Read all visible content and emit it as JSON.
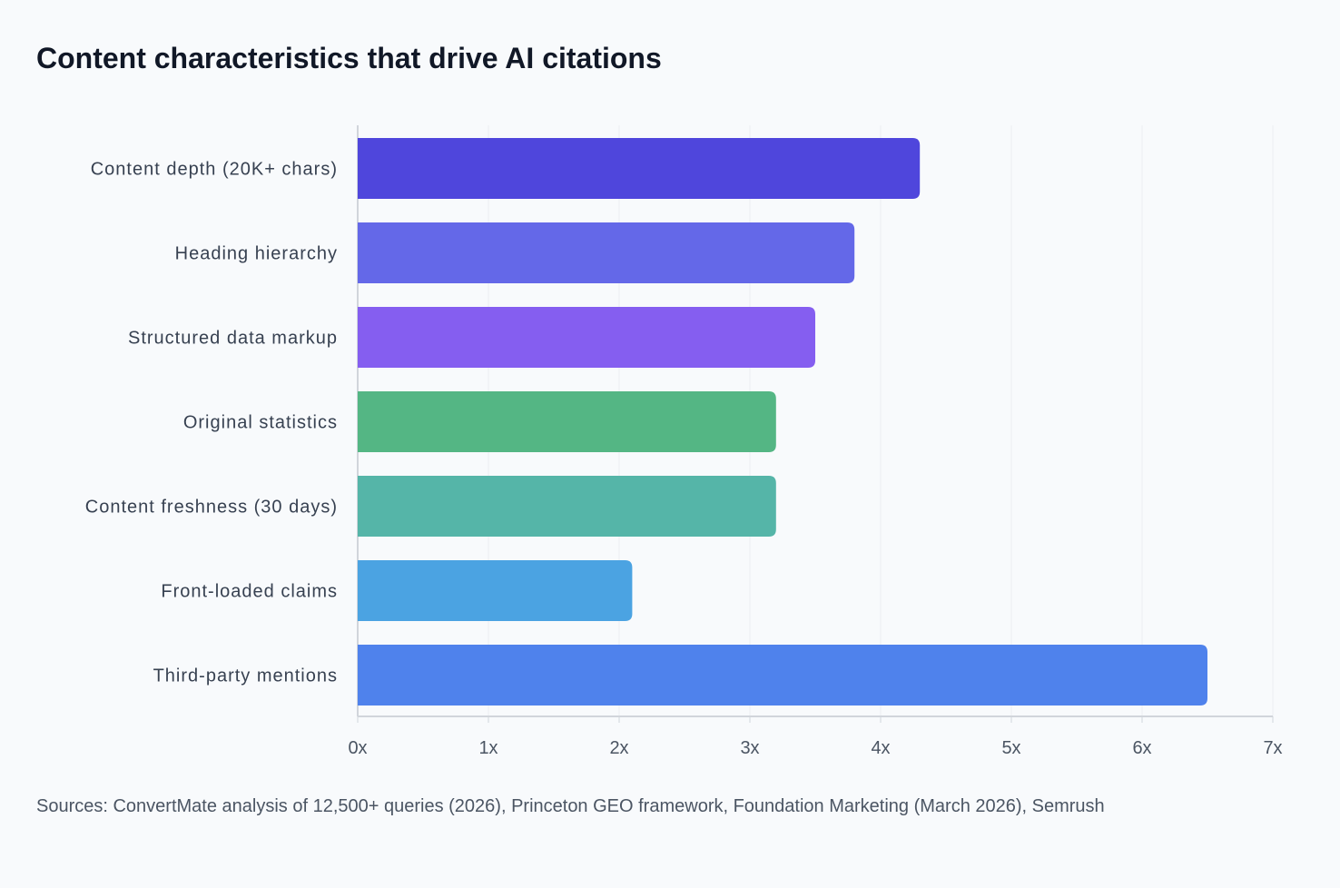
{
  "chart_data": {
    "type": "bar",
    "orientation": "horizontal",
    "title": "Content characteristics that drive AI citations",
    "categories": [
      "Content depth (20K+ chars)",
      "Heading hierarchy",
      "Structured data markup",
      "Original statistics",
      "Content freshness (30 days)",
      "Front-loaded claims",
      "Third-party mentions"
    ],
    "values": [
      4.3,
      3.8,
      3.5,
      3.2,
      3.2,
      2.1,
      6.5
    ],
    "colors": [
      "#4f46dc",
      "#6468e8",
      "#855ef0",
      "#54b684",
      "#55b5a8",
      "#4ba3e2",
      "#4f82ec"
    ],
    "xlim": [
      0,
      7
    ],
    "xticks": [
      "0x",
      "1x",
      "2x",
      "3x",
      "4x",
      "5x",
      "6x",
      "7x"
    ],
    "grid": true,
    "xlabel": "",
    "ylabel": "",
    "source": "Sources: ConvertMate analysis of 12,500+ queries (2026), Princeton GEO framework, Foundation Marketing (March 2026), Semrush"
  }
}
